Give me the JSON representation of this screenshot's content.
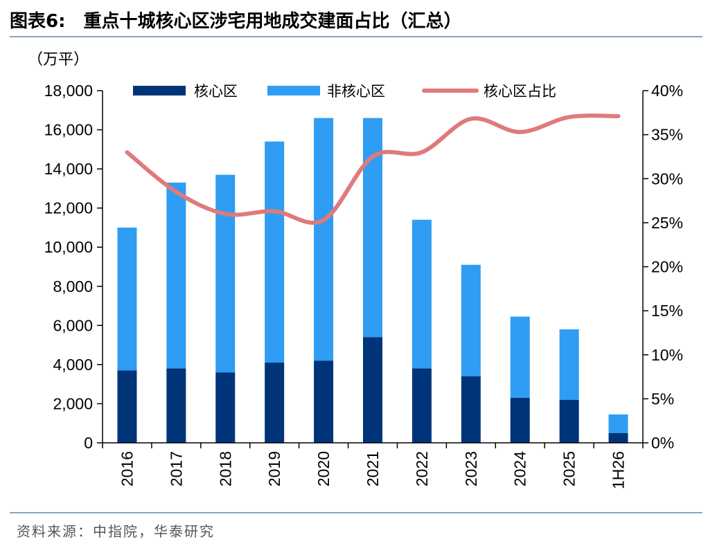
{
  "figure": {
    "label": "图表6:",
    "title": "重点十城核心区涉宅用地成交建面占比（汇总）",
    "unit": "（万平）",
    "source": "资料来源：中指院，华泰研究"
  },
  "colors": {
    "core": "#003478",
    "noncore": "#2e9df3",
    "ratio": "#e07a7a",
    "rule": "#8aa3c4"
  },
  "chart_data": {
    "type": "bar",
    "stacked": true,
    "categories": [
      "2016",
      "2017",
      "2018",
      "2019",
      "2020",
      "2021",
      "2022",
      "2023",
      "2024",
      "2025",
      "1H26"
    ],
    "series": [
      {
        "name": "核心区",
        "values": [
          3700,
          3800,
          3600,
          4100,
          4200,
          5400,
          3800,
          3400,
          2300,
          2200,
          500
        ]
      },
      {
        "name": "非核心区",
        "values": [
          7300,
          9500,
          10100,
          11300,
          12400,
          11200,
          7600,
          5700,
          4150,
          3600,
          950
        ]
      }
    ],
    "line_series": {
      "name": "核心区占比",
      "axis": "right",
      "values": [
        33,
        28.5,
        26,
        26.3,
        25.3,
        32.5,
        33,
        36.8,
        35.3,
        37,
        37.1
      ]
    },
    "y_left": {
      "min": 0,
      "max": 18000,
      "step": 2000,
      "ticks": [
        "0",
        "2,000",
        "4,000",
        "6,000",
        "8,000",
        "10,000",
        "12,000",
        "14,000",
        "16,000",
        "18,000"
      ]
    },
    "y_right": {
      "min": 0,
      "max": 40,
      "step": 5,
      "ticks": [
        "0%",
        "5%",
        "10%",
        "15%",
        "20%",
        "25%",
        "30%",
        "35%",
        "40%"
      ]
    },
    "legend": [
      "核心区",
      "非核心区",
      "核心区占比"
    ],
    "legend_position": "top",
    "grid": false
  }
}
